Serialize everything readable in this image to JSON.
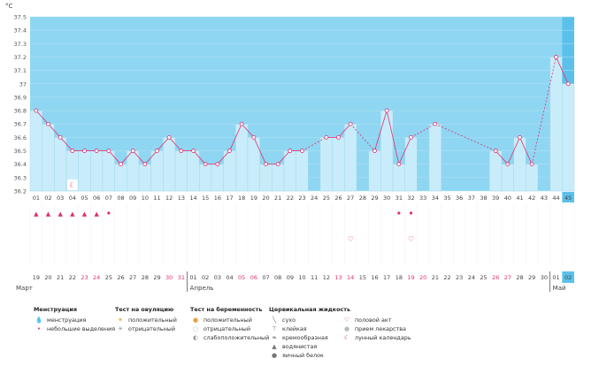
{
  "chart_data": {
    "type": "line",
    "unit_label": "°C",
    "ylim": [
      36.2,
      37.5
    ],
    "yticks": [
      "36.2",
      "36.3",
      "36.4",
      "36.5",
      "36.6",
      "36.7",
      "36.8",
      "36.9",
      "37",
      "37.1",
      "37.2",
      "37.3",
      "37.4",
      "37.5"
    ],
    "cycle_days": [
      "01",
      "02",
      "03",
      "04",
      "05",
      "06",
      "07",
      "08",
      "09",
      "10",
      "11",
      "12",
      "13",
      "14",
      "15",
      "16",
      "17",
      "18",
      "19",
      "20",
      "21",
      "22",
      "23",
      "24",
      "25",
      "26",
      "27",
      "28",
      "29",
      "30",
      "31",
      "32",
      "33",
      "34",
      "35",
      "36",
      "37",
      "38",
      "39",
      "40",
      "41",
      "42",
      "43",
      "44",
      "45"
    ],
    "temps": [
      36.8,
      36.7,
      36.6,
      36.5,
      36.5,
      36.5,
      36.5,
      36.4,
      36.5,
      36.4,
      36.5,
      36.6,
      36.5,
      36.5,
      36.4,
      36.4,
      36.5,
      36.7,
      36.6,
      36.4,
      36.4,
      36.5,
      36.5,
      null,
      36.6,
      36.6,
      36.7,
      null,
      36.5,
      36.8,
      36.4,
      36.6,
      null,
      36.7,
      null,
      null,
      null,
      null,
      36.5,
      36.4,
      36.6,
      36.4,
      null,
      37.2,
      37.0
    ],
    "dates": [
      "19",
      "20",
      "21",
      "22",
      "23",
      "24",
      "25",
      "26",
      "27",
      "28",
      "29",
      "30",
      "31",
      "01",
      "02",
      "03",
      "04",
      "05",
      "06",
      "07",
      "08",
      "09",
      "10",
      "11",
      "12",
      "13",
      "14",
      "15",
      "16",
      "17",
      "18",
      "19",
      "20",
      "21",
      "22",
      "23",
      "24",
      "25",
      "26",
      "27",
      "28",
      "29",
      "30",
      "01",
      "02"
    ],
    "red_date_idx": [
      4,
      5,
      11,
      12,
      17,
      18,
      25,
      26,
      31,
      32,
      38,
      39
    ],
    "months": [
      {
        "label": "Март",
        "idx": 0
      },
      {
        "label": "Апрель",
        "idx": 13
      },
      {
        "label": "Май",
        "idx": 43
      }
    ],
    "highlight_idx": 44,
    "menstruation_idx": [
      0,
      1,
      2,
      3,
      4,
      5
    ],
    "spotting_idx": [
      6,
      30,
      31
    ],
    "love_idx": [
      26,
      31
    ],
    "moon_idx": [
      3
    ]
  },
  "legend": {
    "menstruation": {
      "title": "Менструация",
      "items": [
        {
          "icon": "menstruation-icon",
          "label": "менструация"
        },
        {
          "icon": "spotting-icon",
          "label": "небольшие выделения"
        }
      ]
    },
    "ovulation": {
      "title": "Тест на овуляцию",
      "items": [
        {
          "icon": "positive-test-icon",
          "label": "положительный"
        },
        {
          "icon": "negative-test-icon",
          "label": "отрицательный"
        }
      ]
    },
    "pregnancy": {
      "title": "Тест на беременность",
      "items": [
        {
          "icon": "positive-preg-icon",
          "label": "положительный"
        },
        {
          "icon": "negative-preg-icon",
          "label": "отрицательный"
        },
        {
          "icon": "weak-preg-icon",
          "label": "слабоположительный"
        }
      ]
    },
    "cervical": {
      "title": "Цервикальная жидкость",
      "items": [
        {
          "icon": "dry-icon",
          "label": "сухо"
        },
        {
          "icon": "sticky-icon",
          "label": "клейкая"
        },
        {
          "icon": "creamy-icon",
          "label": "кремообразная"
        },
        {
          "icon": "watery-icon",
          "label": "водянистая"
        },
        {
          "icon": "eggwhite-icon",
          "label": "яичный белок"
        }
      ]
    },
    "other": {
      "items": [
        {
          "icon": "heart-icon",
          "label": "половой акт"
        },
        {
          "icon": "pill-icon",
          "label": "прием лекарства"
        },
        {
          "icon": "moon-icon",
          "label": "лунный календарь"
        }
      ]
    },
    "colors": {
      "accent": "#e0306e",
      "bar": "#c9ecfa",
      "plotbg": "#8fd6f2",
      "highlight": "#5cc1ea"
    }
  }
}
